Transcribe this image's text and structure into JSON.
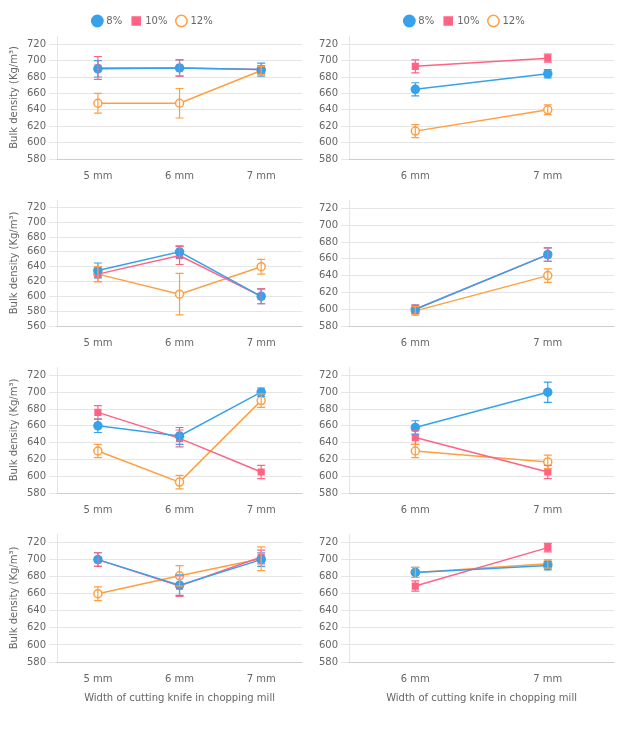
{
  "chart_data": [
    {
      "type": "line",
      "categories": [
        "5 mm",
        "6 mm",
        "7 mm"
      ],
      "series": [
        {
          "name": "8%",
          "marker": "circle",
          "values": [
            690,
            691,
            689
          ],
          "yerr": [
            10,
            10,
            8
          ]
        },
        {
          "name": "10%",
          "marker": "square",
          "values": [
            691,
            691,
            689
          ],
          "yerr": [
            14,
            10,
            5
          ]
        },
        {
          "name": "12%",
          "marker": "open circle",
          "values": [
            648,
            648,
            688
          ],
          "yerr": [
            12,
            18,
            5
          ]
        }
      ],
      "ylabel": "Bulk density (Kg/m³)",
      "ylim": [
        580,
        730
      ],
      "yticks": [
        580,
        600,
        620,
        640,
        660,
        680,
        700,
        720
      ],
      "grid": "y",
      "legend": "top"
    },
    {
      "type": "line",
      "categories": [
        "6 mm",
        "7 mm"
      ],
      "series": [
        {
          "name": "8%",
          "marker": "circle",
          "values": [
            665,
            684
          ],
          "yerr": [
            8,
            5
          ]
        },
        {
          "name": "10%",
          "marker": "square",
          "values": [
            693,
            703
          ],
          "yerr": [
            8,
            5
          ]
        },
        {
          "name": "12%",
          "marker": "open circle",
          "values": [
            614,
            640
          ],
          "yerr": [
            8,
            6
          ]
        }
      ],
      "ylim": [
        580,
        730
      ],
      "yticks": [
        580,
        600,
        620,
        640,
        660,
        680,
        700,
        720
      ],
      "grid": "y",
      "legend": "top"
    },
    {
      "type": "line",
      "categories": [
        "5 mm",
        "6 mm",
        "7 mm"
      ],
      "series": [
        {
          "name": "8%",
          "marker": "circle",
          "values": [
            635,
            660,
            600
          ],
          "yerr": [
            10,
            8,
            10
          ]
        },
        {
          "name": "10%",
          "marker": "square",
          "values": [
            630,
            655,
            600
          ],
          "yerr": [
            10,
            12,
            10
          ]
        },
        {
          "name": "12%",
          "marker": "open circle",
          "values": [
            630,
            603,
            640
          ],
          "yerr": [
            10,
            28,
            10
          ]
        }
      ],
      "ylabel": "Bulk density (Kg/m³)",
      "ylim": [
        560,
        730
      ],
      "yticks": [
        560,
        580,
        600,
        620,
        640,
        660,
        680,
        700,
        720
      ],
      "grid": "y"
    },
    {
      "type": "line",
      "categories": [
        "6 mm",
        "7 mm"
      ],
      "series": [
        {
          "name": "8%",
          "marker": "circle",
          "values": [
            600,
            665
          ],
          "yerr": [
            5,
            8
          ]
        },
        {
          "name": "10%",
          "marker": "square",
          "values": [
            600,
            665
          ],
          "yerr": [
            5,
            8
          ]
        },
        {
          "name": "12%",
          "marker": "open circle",
          "values": [
            598,
            640
          ],
          "yerr": [
            5,
            8
          ]
        }
      ],
      "ylim": [
        580,
        730
      ],
      "yticks": [
        580,
        600,
        620,
        640,
        660,
        680,
        700,
        720
      ],
      "grid": "y"
    },
    {
      "type": "line",
      "categories": [
        "5 mm",
        "6 mm",
        "7 mm"
      ],
      "series": [
        {
          "name": "8%",
          "marker": "circle",
          "values": [
            660,
            648,
            700
          ],
          "yerr": [
            8,
            10,
            5
          ]
        },
        {
          "name": "10%",
          "marker": "square",
          "values": [
            676,
            645,
            605
          ],
          "yerr": [
            8,
            10,
            8
          ]
        },
        {
          "name": "12%",
          "marker": "open circle",
          "values": [
            630,
            593,
            690
          ],
          "yerr": [
            8,
            8,
            8
          ]
        }
      ],
      "ylabel": "Bulk density (Kg/m³)",
      "ylim": [
        580,
        730
      ],
      "yticks": [
        580,
        600,
        620,
        640,
        660,
        680,
        700,
        720
      ],
      "grid": "y"
    },
    {
      "type": "line",
      "categories": [
        "6 mm",
        "7 mm"
      ],
      "series": [
        {
          "name": "8%",
          "marker": "circle",
          "values": [
            658,
            700
          ],
          "yerr": [
            8,
            12
          ]
        },
        {
          "name": "10%",
          "marker": "square",
          "values": [
            646,
            605
          ],
          "yerr": [
            8,
            8
          ]
        },
        {
          "name": "12%",
          "marker": "open circle",
          "values": [
            630,
            617
          ],
          "yerr": [
            8,
            8
          ]
        }
      ],
      "ylim": [
        580,
        730
      ],
      "yticks": [
        580,
        600,
        620,
        640,
        660,
        680,
        700,
        720
      ],
      "grid": "y"
    },
    {
      "type": "line",
      "categories": [
        "5 mm",
        "6 mm",
        "7 mm"
      ],
      "series": [
        {
          "name": "8%",
          "marker": "circle",
          "values": [
            700,
            670,
            700
          ],
          "yerr": [
            8,
            12,
            8
          ]
        },
        {
          "name": "10%",
          "marker": "square",
          "values": [
            700,
            669,
            703
          ],
          "yerr": [
            8,
            12,
            8
          ]
        },
        {
          "name": "12%",
          "marker": "open circle",
          "values": [
            660,
            681,
            701
          ],
          "yerr": [
            8,
            12,
            14
          ]
        }
      ],
      "ylabel": "Bulk density (Kg/m³)",
      "xlabel": "Width of cutting knife in chopping mill",
      "ylim": [
        580,
        730
      ],
      "yticks": [
        580,
        600,
        620,
        640,
        660,
        680,
        700,
        720
      ],
      "grid": "y"
    },
    {
      "type": "line",
      "categories": [
        "6 mm",
        "7 mm"
      ],
      "series": [
        {
          "name": "8%",
          "marker": "circle",
          "values": [
            685,
            693
          ],
          "yerr": [
            6,
            5
          ]
        },
        {
          "name": "10%",
          "marker": "square",
          "values": [
            669,
            714
          ],
          "yerr": [
            6,
            5
          ]
        },
        {
          "name": "12%",
          "marker": "open circle",
          "values": [
            685,
            695
          ],
          "yerr": [
            6,
            5
          ]
        }
      ],
      "xlabel": "Width of cutting knife in chopping mill",
      "ylim": [
        580,
        730
      ],
      "yticks": [
        580,
        600,
        620,
        640,
        660,
        680,
        700,
        720
      ],
      "grid": "y"
    }
  ]
}
